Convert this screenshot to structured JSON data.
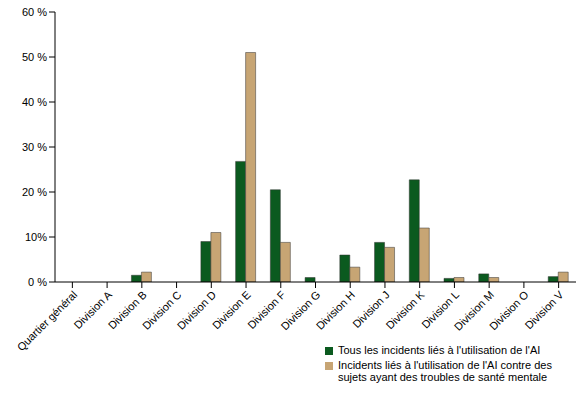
{
  "chart_data": {
    "type": "bar",
    "categories": [
      "Quartier général",
      "Division A",
      "Division B",
      "Division C",
      "Division D",
      "Division E",
      "Division F",
      "Division G",
      "Division H",
      "Division J",
      "Division K",
      "Division L",
      "Division M",
      "Division O",
      "Division V"
    ],
    "series": [
      {
        "name": "Tous les incidents liés à l'utilisation de l'AI",
        "color": "#0b5a1f",
        "values": [
          0,
          0,
          1.5,
          0,
          9,
          26.8,
          20.5,
          1,
          6,
          8.8,
          22.7,
          0.8,
          1.8,
          0,
          1.2
        ]
      },
      {
        "name": "Incidents liés à l'utilisation de l'AI contre des sujets ayant des troubles de santé mentale",
        "color": "#c7a574",
        "values": [
          0,
          0,
          2.2,
          0,
          11,
          51,
          8.8,
          0,
          3.3,
          7.7,
          12,
          1,
          1,
          0,
          2.2
        ]
      }
    ],
    "ylim": [
      0,
      60
    ],
    "yticks": [
      {
        "value": 0,
        "label": "0 %"
      },
      {
        "value": 10,
        "label": "10%"
      },
      {
        "value": 20,
        "label": "20 %"
      },
      {
        "value": 30,
        "label": "30 %"
      },
      {
        "value": 40,
        "label": "40 %"
      },
      {
        "value": 50,
        "label": "50 %"
      },
      {
        "value": 60,
        "label": "60 %"
      }
    ],
    "grid": false,
    "legend": "lower right"
  }
}
